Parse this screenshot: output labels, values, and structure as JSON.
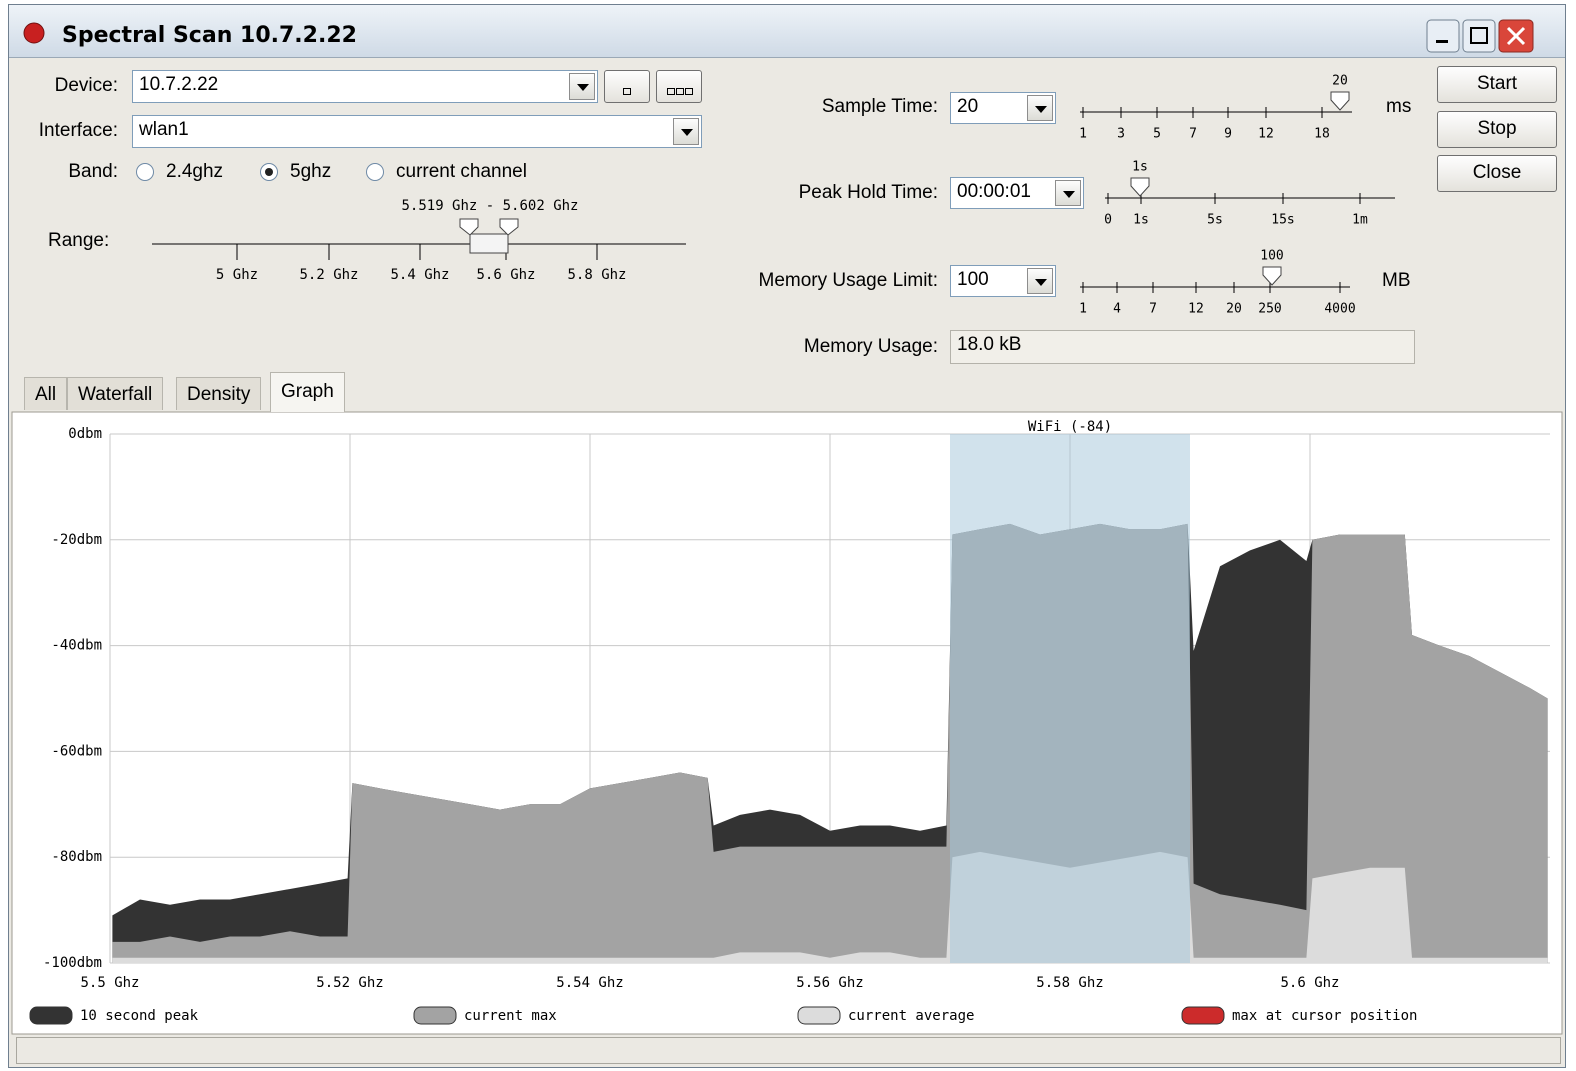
{
  "window": {
    "title": "Spectral Scan 10.7.2.22"
  },
  "form": {
    "device": {
      "label": "Device:",
      "value": "10.7.2.22"
    },
    "interface": {
      "label": "Interface:",
      "value": "wlan1"
    },
    "band": {
      "label": "Band:",
      "options": [
        "2.4ghz",
        "5ghz",
        "current channel"
      ],
      "selected": 1
    },
    "range": {
      "label": "Range:",
      "value": "5.519 Ghz - 5.602 Ghz",
      "ticks": [
        "5 Ghz",
        "5.2 Ghz",
        "5.4 Ghz",
        "5.6 Ghz",
        "5.8 Ghz"
      ]
    },
    "sample_time": {
      "label": "Sample Time:",
      "value": "20",
      "slider_value": "20",
      "ticks": [
        "1",
        "3",
        "5",
        "7",
        "9",
        "12",
        "18"
      ],
      "unit": "ms"
    },
    "peak_hold_time": {
      "label": "Peak Hold Time:",
      "value": "00:00:01",
      "slider_value": "1s",
      "ticks": [
        "0",
        "1s",
        "5s",
        "15s",
        "1m"
      ]
    },
    "memory_usage_limit": {
      "label": "Memory Usage Limit:",
      "value": "100",
      "slider_value": "100",
      "ticks": [
        "1",
        "4",
        "7",
        "12",
        "20",
        "250",
        "4000"
      ],
      "unit": "MB"
    },
    "memory_usage": {
      "label": "Memory Usage:",
      "value": "18.0 kB"
    }
  },
  "buttons": [
    "Start",
    "Stop",
    "Close"
  ],
  "tabs": {
    "items": [
      "All",
      "Waterfall",
      "Density",
      "Graph"
    ],
    "selected": 3
  },
  "chart_data": {
    "type": "area",
    "x": [
      5.5002,
      5.5025,
      5.505,
      5.5075,
      5.51,
      5.5125,
      5.515,
      5.5175,
      5.5198,
      5.5202,
      5.5225,
      5.525,
      5.5275,
      5.53,
      5.5325,
      5.535,
      5.5375,
      5.54,
      5.5425,
      5.545,
      5.5475,
      5.5498,
      5.5503,
      5.5525,
      5.555,
      5.5575,
      5.56,
      5.5625,
      5.565,
      5.5675,
      5.5697,
      5.5702,
      5.5725,
      5.575,
      5.5775,
      5.58,
      5.5825,
      5.585,
      5.5875,
      5.5898,
      5.5903,
      5.5925,
      5.595,
      5.5975,
      5.5997,
      5.6002,
      5.6025,
      5.605,
      5.6079,
      5.6085,
      5.6108,
      5.6133,
      5.6158,
      5.6183,
      5.6198
    ],
    "series": [
      {
        "name": "10 second peak",
        "color": "#333333",
        "values": [
          -91,
          -88,
          -89,
          -88,
          -88,
          -87,
          -86,
          -85,
          -84,
          -66,
          -67,
          -68,
          -69,
          -70,
          -71,
          -70,
          -70,
          -67,
          -66,
          -65,
          -64,
          -65,
          -74,
          -72,
          -71,
          -72,
          -75,
          -74,
          -74,
          -75,
          -74,
          -19,
          -18,
          -17,
          -19,
          -18,
          -17,
          -18,
          -18,
          -17,
          -41,
          -25,
          -22,
          -20,
          -24,
          -20,
          -19,
          -19,
          -19,
          -38,
          -40,
          -42,
          -45,
          -48,
          -50
        ]
      },
      {
        "name": "current max",
        "color": "#a3a3a3",
        "values": [
          -96,
          -96,
          -95,
          -96,
          -95,
          -95,
          -94,
          -95,
          -95,
          -66,
          -67,
          -68,
          -69,
          -70,
          -71,
          -70,
          -70,
          -67,
          -66,
          -65,
          -64,
          -65,
          -79,
          -78,
          -78,
          -78,
          -78,
          -78,
          -78,
          -78,
          -78,
          -19,
          -18,
          -17,
          -19,
          -18,
          -17,
          -18,
          -18,
          -17,
          -85,
          -87,
          -88,
          -89,
          -90,
          -20,
          -19,
          -19,
          -19,
          -38,
          -40,
          -42,
          -45,
          -48,
          -50
        ]
      },
      {
        "name": "current average",
        "color": "#dcdcdc",
        "values": [
          -99,
          -99,
          -99,
          -99,
          -99,
          -99,
          -99,
          -99,
          -99,
          -99,
          -99,
          -99,
          -99,
          -99,
          -99,
          -99,
          -99,
          -99,
          -99,
          -99,
          -99,
          -99,
          -99,
          -98,
          -98,
          -98,
          -99,
          -98,
          -98,
          -99,
          -99,
          -80,
          -79,
          -80,
          -81,
          -82,
          -81,
          -80,
          -79,
          -80,
          -99,
          -99,
          -99,
          -99,
          -99,
          -84,
          -83,
          -82,
          -82,
          -99,
          -99,
          -99,
          -99,
          -99,
          -99
        ]
      }
    ],
    "extra_legend": {
      "name": "max at cursor position",
      "color": "#cc2b2b"
    },
    "highlight": {
      "label": "WiFi (-84)",
      "xlim": [
        5.57,
        5.59
      ],
      "color": "#a3c5da"
    },
    "xlim": [
      5.5,
      5.62
    ],
    "xticks": [
      {
        "value": 5.5,
        "label": "5.5 Ghz"
      },
      {
        "value": 5.52,
        "label": "5.52 Ghz"
      },
      {
        "value": 5.54,
        "label": "5.54 Ghz"
      },
      {
        "value": 5.56,
        "label": "5.56 Ghz"
      },
      {
        "value": 5.58,
        "label": "5.58 Ghz"
      },
      {
        "value": 5.6,
        "label": "5.6 Ghz"
      }
    ],
    "ylim": [
      -100,
      0
    ],
    "yticks": [
      {
        "value": 0,
        "label": "0dbm"
      },
      {
        "value": -20,
        "label": "-20dbm"
      },
      {
        "value": -40,
        "label": "-40dbm"
      },
      {
        "value": -60,
        "label": "-60dbm"
      },
      {
        "value": -80,
        "label": "-80dbm"
      },
      {
        "value": -100,
        "label": "-100dbm"
      }
    ],
    "grid": true
  }
}
